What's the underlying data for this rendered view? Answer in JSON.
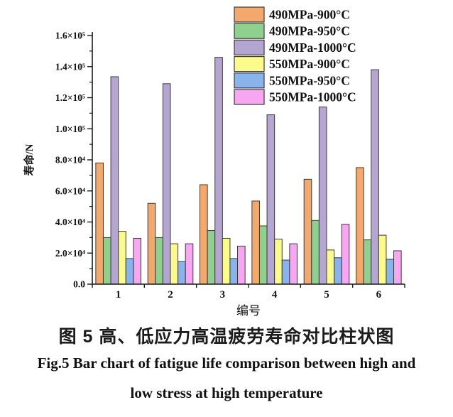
{
  "figure": {
    "caption_zh": "图 5 高、低应力高温疲劳寿命对比柱状图",
    "caption_en_line1": "Fig.5 Bar chart of fatigue life comparison between high and",
    "caption_en_line2": "low stress at high temperature"
  },
  "chart_data": {
    "type": "bar",
    "title": "",
    "xlabel": "编号",
    "ylabel": "寿命/N",
    "categories": [
      "1",
      "2",
      "3",
      "4",
      "5",
      "6"
    ],
    "ylim": [
      0,
      160000
    ],
    "ytick_step": 20000,
    "ytick_labels": [
      "0.0",
      "2.0×10⁴",
      "4.0×10⁴",
      "6.0×10⁴",
      "8.0×10⁴",
      "1.0×10⁵",
      "1.2×10⁵",
      "1.4×10⁵",
      "1.6×10⁵"
    ],
    "grid": false,
    "legend_position": "top-right",
    "axis_color": "#1a1a1a",
    "bar_edge_color": "#3b3b3b",
    "series": [
      {
        "name": "490MPa-900°C",
        "color": "#F5A86B",
        "values": [
          78000,
          52000,
          64000,
          53500,
          67500,
          75000
        ]
      },
      {
        "name": "490MPa-950°C",
        "color": "#8FD08F",
        "values": [
          30000,
          30000,
          34500,
          37500,
          41000,
          28500
        ]
      },
      {
        "name": "490MPa-1000°C",
        "color": "#B5A5D3",
        "values": [
          133500,
          129000,
          146000,
          109000,
          114000,
          138000
        ]
      },
      {
        "name": "550MPa-900°C",
        "color": "#FBFB8C",
        "values": [
          34000,
          26000,
          29500,
          29000,
          22000,
          31500
        ]
      },
      {
        "name": "550MPa-950°C",
        "color": "#89B3EB",
        "values": [
          16500,
          14500,
          16500,
          15500,
          17000,
          16000
        ]
      },
      {
        "name": "550MPa-1000°C",
        "color": "#F8A6F1",
        "values": [
          29500,
          26000,
          24500,
          26000,
          38500,
          21500
        ]
      }
    ]
  }
}
